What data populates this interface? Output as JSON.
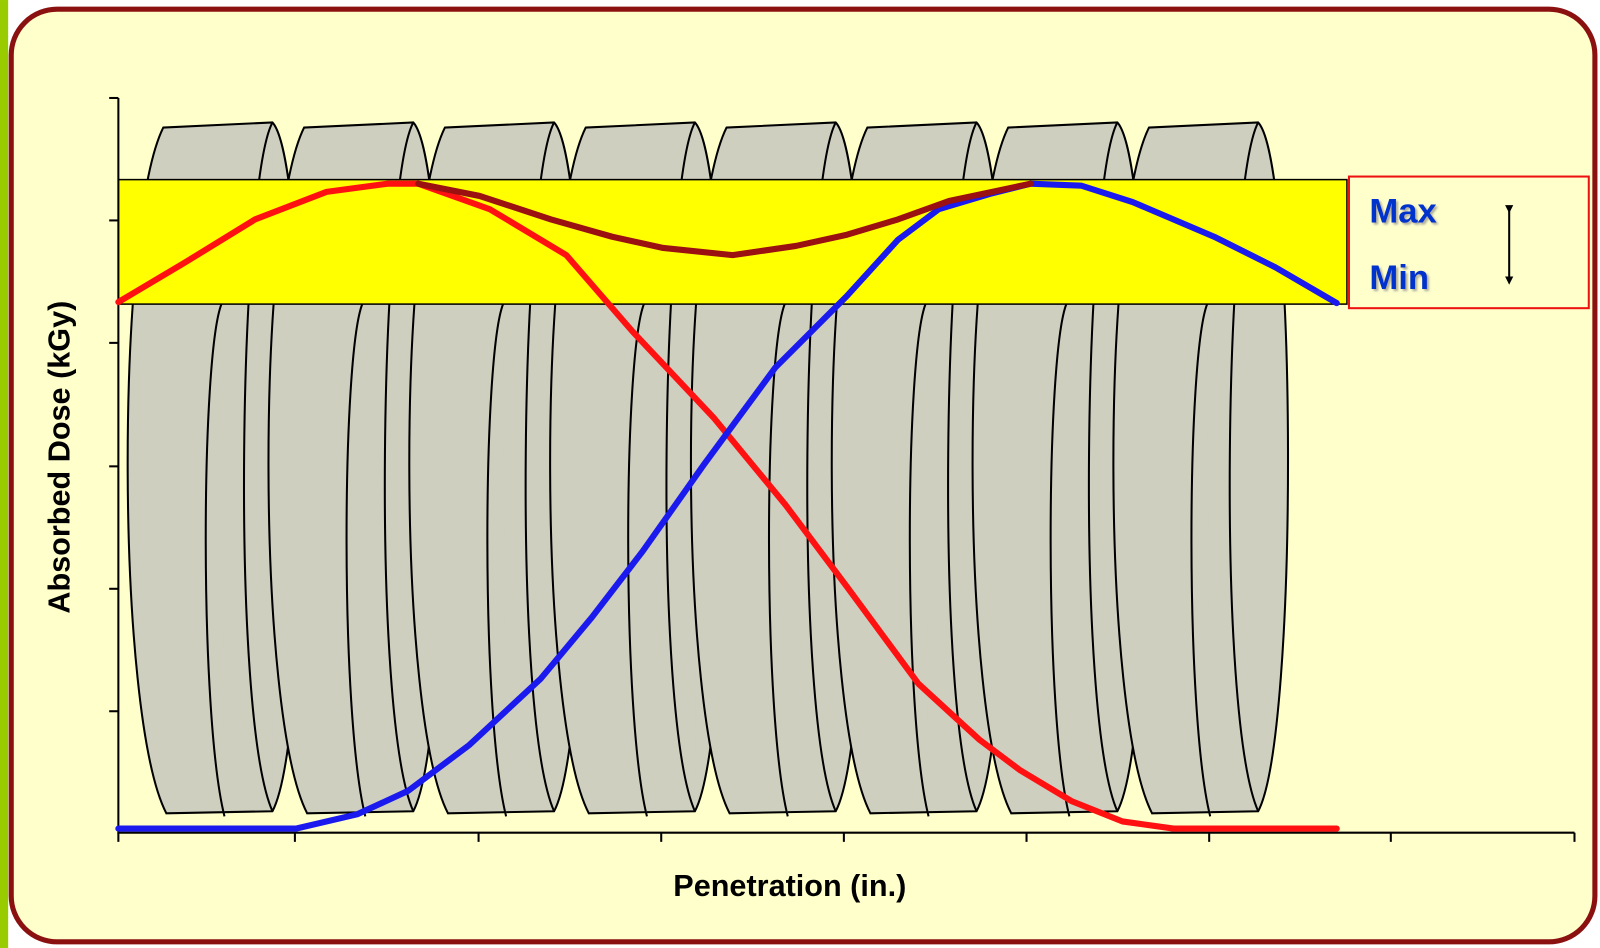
{
  "axis_labels": {
    "y": "Absorbed Dose (kGy)",
    "x": "Penetration (in.)"
  },
  "legend": {
    "max": "Max",
    "min": "Min"
  }
}
